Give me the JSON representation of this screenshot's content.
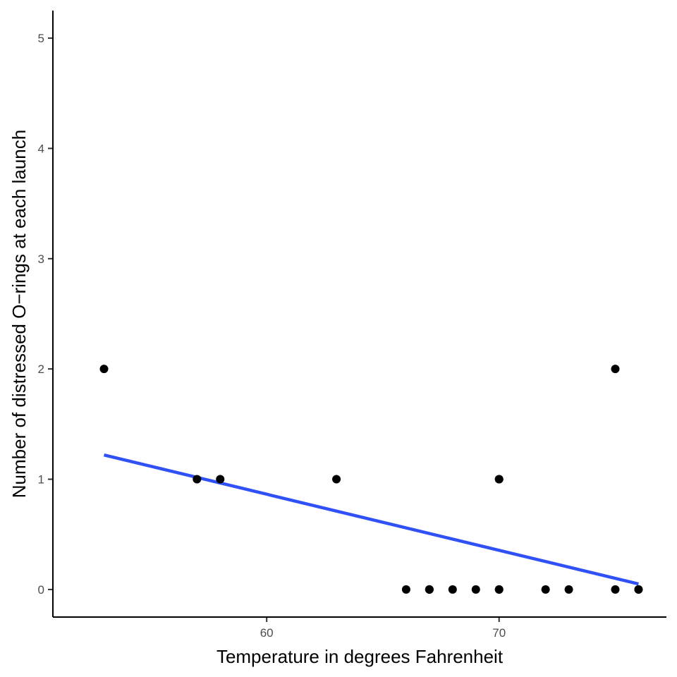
{
  "chart_data": {
    "type": "scatter",
    "title": "",
    "xlabel": "Temperature in degrees Fahrenheit",
    "ylabel": "Number of distressed O−rings at each launch",
    "xlim": [
      50.8,
      77.2
    ],
    "ylim": [
      -0.25,
      5.25
    ],
    "xticks": [
      60,
      70
    ],
    "xtick_labels": [
      "60",
      "70"
    ],
    "yticks": [
      0,
      1,
      2,
      3,
      4,
      5
    ],
    "ytick_labels": [
      "0",
      "1",
      "2",
      "3",
      "4",
      "5"
    ],
    "grid": false,
    "legend": "none",
    "points": [
      {
        "x": 53,
        "y": 2
      },
      {
        "x": 57,
        "y": 1
      },
      {
        "x": 58,
        "y": 1
      },
      {
        "x": 63,
        "y": 1
      },
      {
        "x": 66,
        "y": 0
      },
      {
        "x": 67,
        "y": 0
      },
      {
        "x": 67,
        "y": 0
      },
      {
        "x": 67,
        "y": 0
      },
      {
        "x": 68,
        "y": 0
      },
      {
        "x": 69,
        "y": 0
      },
      {
        "x": 70,
        "y": 0
      },
      {
        "x": 70,
        "y": 0
      },
      {
        "x": 70,
        "y": 1
      },
      {
        "x": 70,
        "y": 1
      },
      {
        "x": 72,
        "y": 0
      },
      {
        "x": 73,
        "y": 0
      },
      {
        "x": 75,
        "y": 0
      },
      {
        "x": 75,
        "y": 2
      },
      {
        "x": 76,
        "y": 0
      },
      {
        "x": 76,
        "y": 0
      }
    ],
    "trend_line": {
      "x": [
        53,
        76
      ],
      "y": [
        1.22,
        0.05
      ]
    },
    "colors": {
      "points": "#000000",
      "trend_line": "#3050f8",
      "axis": "#000000",
      "tick_label": "#4d4d4d"
    }
  }
}
